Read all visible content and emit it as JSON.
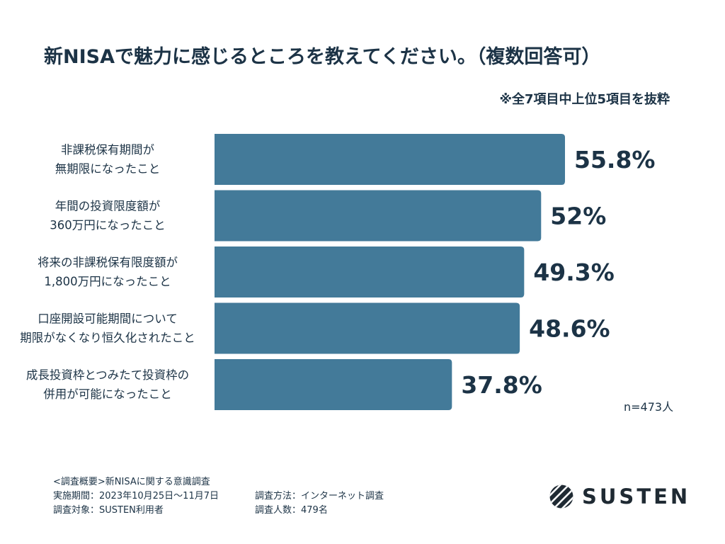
{
  "chart_data": {
    "type": "bar",
    "orientation": "horizontal",
    "title": "新NISAで魅力に感じるところを教えてください。（複数回答可）",
    "note": "※全7項目中上位5項目を抜粋",
    "categories": [
      [
        "非課税保有期間が",
        "無期限になったこと"
      ],
      [
        "年間の投資限度額が",
        "360万円になったこと"
      ],
      [
        "将来の非課税保有限度額が",
        "1,800万円になったこと"
      ],
      [
        "口座開設可能期間について",
        "期限がなくなり恒久化されたこと"
      ],
      [
        "成長投資枠とつみたて投資枠の",
        "併用が可能になったこと"
      ]
    ],
    "values": [
      55.8,
      52,
      49.3,
      48.6,
      37.8
    ],
    "value_labels": [
      "55.8%",
      "52%",
      "49.3%",
      "48.6%",
      "37.8%"
    ],
    "xlim": [
      0,
      60
    ],
    "grid": false,
    "bar_color": "#437a99",
    "sample_size": "n=473人"
  },
  "footer": {
    "line1": "<調査概要>新NISAに関する意識調査",
    "period": "実施期間：2023年10月25日〜11月7日",
    "method": "調査方法：インターネット調査",
    "target": "調査対象：SUSTEN利用者",
    "respondents": "調査人数：479名"
  },
  "brand": {
    "name": "SUSTEN",
    "logo_icon": "susten-logo-icon"
  },
  "colors": {
    "text": "#1c3346",
    "bar": "#437a99"
  }
}
